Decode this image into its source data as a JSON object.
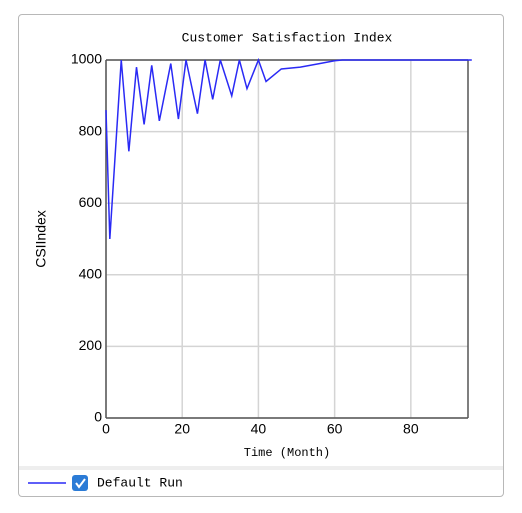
{
  "chart_data": {
    "type": "line",
    "title": "Customer Satisfaction Index",
    "x_label": "Time (Month)",
    "y_label": "CSIIndex",
    "x": [
      0,
      1,
      4,
      6,
      8,
      10,
      12,
      14,
      17,
      19,
      21,
      24,
      26,
      28,
      30,
      33,
      35,
      37,
      40,
      42,
      46,
      51,
      56,
      60,
      62,
      96
    ],
    "series": [
      {
        "name": "Default Run",
        "color": "#2a2af5",
        "values": [
          860,
          500,
          1000,
          745,
          980,
          820,
          985,
          830,
          990,
          835,
          1000,
          850,
          1000,
          890,
          1000,
          900,
          1000,
          920,
          1000,
          940,
          975,
          980,
          990,
          998,
          1000,
          1000
        ]
      }
    ],
    "xlim": [
      0,
      95
    ],
    "xticks": [
      0,
      20,
      40,
      60,
      80
    ],
    "ylim": [
      0,
      1000
    ],
    "yticks": [
      0,
      200,
      400,
      600,
      800,
      1000
    ],
    "grid": true
  }
}
